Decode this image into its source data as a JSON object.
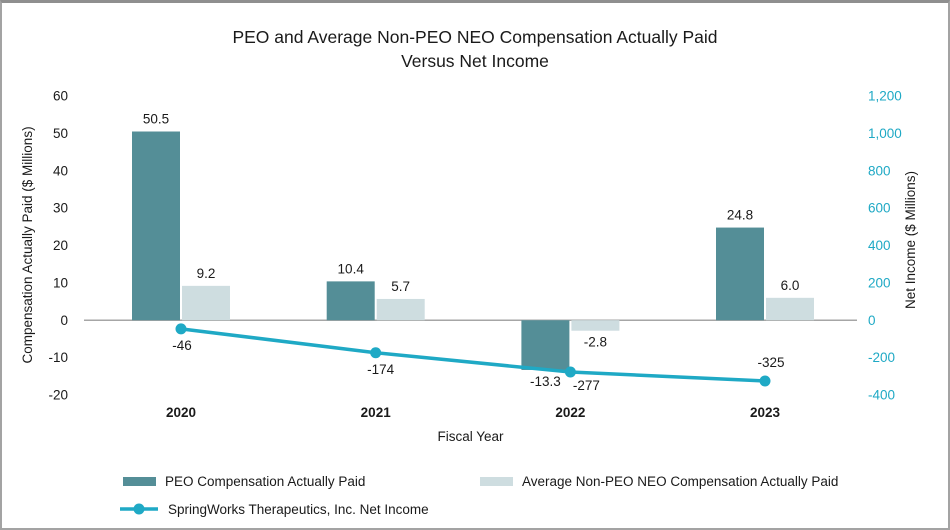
{
  "title": {
    "line1": "PEO and Average Non-PEO NEO Compensation Actually Paid",
    "line2": "Versus Net Income"
  },
  "chart_data": {
    "type": "bar+line combo",
    "categories": [
      "2020",
      "2021",
      "2022",
      "2023"
    ],
    "xlabel": "Fiscal Year",
    "left_axis": {
      "label": "Compensation Actually Paid ($ Millions)",
      "min": -20,
      "max": 60,
      "step": 10,
      "ticks": [
        "60",
        "50",
        "40",
        "30",
        "20",
        "10",
        "0",
        "-10",
        "-20"
      ]
    },
    "right_axis": {
      "label": "Net Income ($ Millions)",
      "min": -400,
      "max": 1200,
      "step": 200,
      "ticks": [
        "1,200",
        "1,000",
        "800",
        "600",
        "400",
        "200",
        "0",
        "-200",
        "-400"
      ],
      "color": "#1fa9c5"
    },
    "series": [
      {
        "name": "PEO Compensation Actually Paid",
        "type": "bar",
        "axis": "left",
        "color": "#548e97",
        "values": [
          50.5,
          10.4,
          -13.3,
          24.8
        ],
        "labels": [
          "50.5",
          "10.4",
          "-13.3",
          "24.8"
        ]
      },
      {
        "name": "Average Non-PEO NEO Compensation Actually Paid",
        "type": "bar",
        "axis": "left",
        "color": "#cedde0",
        "values": [
          9.2,
          5.7,
          -2.8,
          6.0
        ],
        "labels": [
          "9.2",
          "5.7",
          "-2.8",
          "6.0"
        ]
      },
      {
        "name": "SpringWorks Therapeutics, Inc. Net Income",
        "type": "line",
        "axis": "right",
        "color": "#1fa9c5",
        "values": [
          -46,
          -174,
          -277,
          -325
        ],
        "labels": [
          "-46",
          "-174",
          "-277",
          "-325"
        ]
      }
    ],
    "grid": "zero-line only",
    "legend_position": "bottom-left, two rows"
  },
  "legend": {
    "items": [
      {
        "label": "PEO Compensation Actually Paid",
        "type": "bar",
        "color": "#548e97"
      },
      {
        "label": "Average Non-PEO NEO Compensation Actually Paid",
        "type": "bar",
        "color": "#cedde0"
      },
      {
        "label": "SpringWorks Therapeutics, Inc. Net Income",
        "type": "line",
        "color": "#1fa9c5"
      }
    ]
  }
}
